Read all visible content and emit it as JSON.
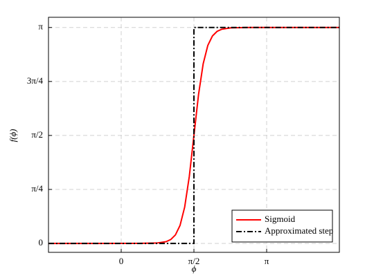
{
  "chart_data": {
    "type": "line",
    "xlabel": "ϕ",
    "ylabel": "f(ϕ)",
    "xlim": [
      -1.5708,
      4.7124
    ],
    "ylim": [
      -0.13,
      3.29
    ],
    "xticks": [
      {
        "value": 0,
        "label": "0"
      },
      {
        "value": 1.5708,
        "label": "π/2"
      },
      {
        "value": 3.1416,
        "label": "π"
      }
    ],
    "yticks": [
      {
        "value": 0,
        "label": "0"
      },
      {
        "value": 0.7854,
        "label": "π/4"
      },
      {
        "value": 1.5708,
        "label": "π/2"
      },
      {
        "value": 2.3562,
        "label": "3π/4"
      },
      {
        "value": 3.1416,
        "label": "π"
      }
    ],
    "grid": true,
    "legend": "lower right",
    "series": [
      {
        "name": "Sigmoid",
        "color": "#ff0000",
        "style": "solid",
        "x": [
          -1.5708,
          0.3708,
          0.7708,
          0.9708,
          1.0708,
          1.1708,
          1.2708,
          1.3708,
          1.4708,
          1.5708,
          1.6708,
          1.7708,
          1.8708,
          1.9708,
          2.0708,
          2.1708,
          2.3708,
          2.7708,
          4.7124
        ],
        "values": [
          0,
          0.0002,
          0.0052,
          0.0257,
          0.0564,
          0.1232,
          0.2614,
          0.5277,
          0.974,
          1.5708,
          2.1676,
          2.6139,
          2.8802,
          3.0184,
          3.0852,
          3.1159,
          3.1364,
          3.1414,
          3.1416
        ]
      },
      {
        "name": "Approximated step",
        "color": "#000000",
        "style": "dashdot",
        "x": [
          -1.5708,
          1.5708,
          1.5708,
          4.7124
        ],
        "values": [
          0,
          0,
          3.1416,
          3.1416
        ]
      }
    ]
  }
}
